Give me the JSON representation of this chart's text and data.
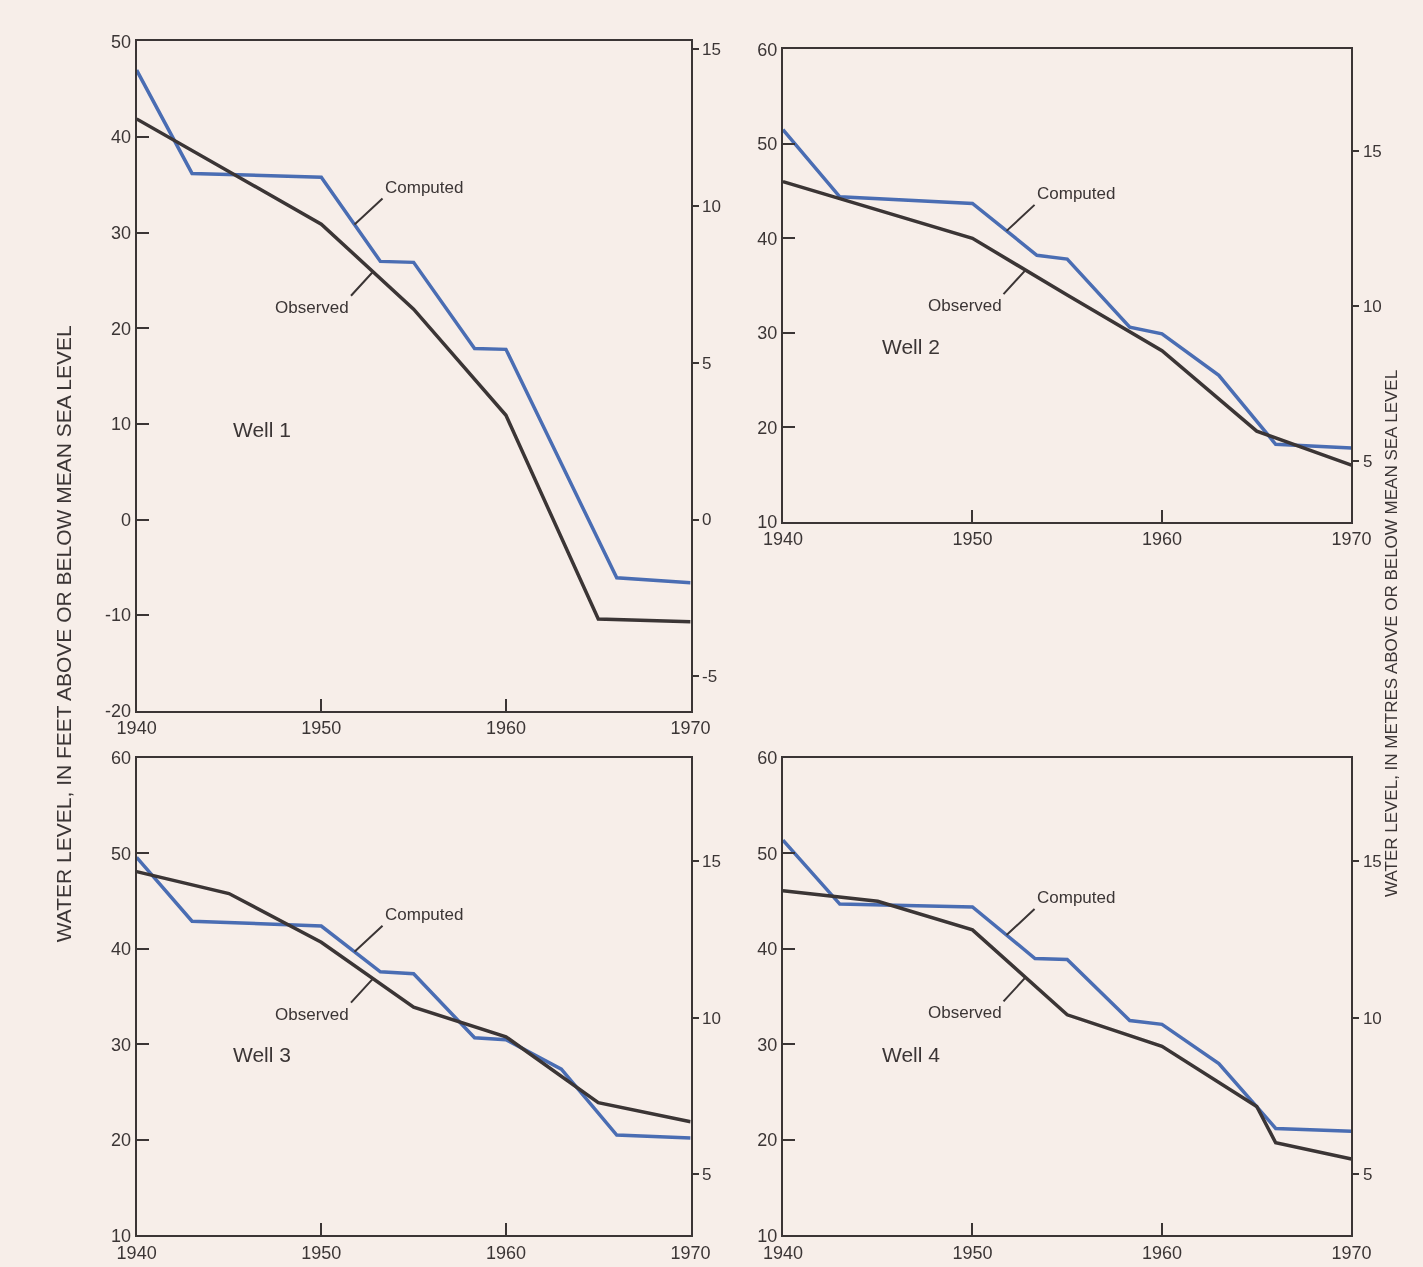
{
  "chart_data": [
    {
      "type": "line",
      "ylabel": "WATER LEVEL, IN FEET ABOVE OR BELOW MEAN SEA LEVEL",
      "annotations": [
        "Well 1"
      ],
      "xlim": [
        1940,
        1970
      ],
      "xticks": [
        1940,
        1950,
        1960,
        1970
      ],
      "ylim": [
        -20,
        50
      ],
      "yticks": [
        -20,
        -10,
        0,
        10,
        20,
        30,
        40,
        50
      ],
      "y2lim": [
        -6.096,
        15.24
      ],
      "y2ticks": [
        -5,
        0,
        5,
        10,
        15
      ],
      "grid": false,
      "series": [
        {
          "name": "Computed",
          "color": "#4a6db3",
          "x": [
            1940,
            1943,
            1950,
            1953.2,
            1955,
            1958.3,
            1960,
            1966,
            1970
          ],
          "values": [
            47,
            36.2,
            35.8,
            27.0,
            26.9,
            17.9,
            17.8,
            -6.1,
            -6.6
          ]
        },
        {
          "name": "Observed",
          "color": "#3b3535",
          "x": [
            1940,
            1950,
            1955,
            1960,
            1965,
            1970
          ],
          "values": [
            41.9,
            30.9,
            22.0,
            10.9,
            -10.4,
            -10.7
          ]
        }
      ]
    },
    {
      "type": "line",
      "y2label": "WATER LEVEL, IN METRES ABOVE OR BELOW MEAN SEA LEVEL",
      "annotations": [
        "Well 2"
      ],
      "xlim": [
        1940,
        1970
      ],
      "xticks": [
        1940,
        1950,
        1960,
        1970
      ],
      "ylim": [
        10,
        60
      ],
      "yticks": [
        10,
        20,
        30,
        40,
        50,
        60
      ],
      "y2lim": [
        3.048,
        18.288
      ],
      "y2ticks": [
        5,
        10,
        15
      ],
      "grid": false,
      "series": [
        {
          "name": "Computed",
          "color": "#4a6db3",
          "x": [
            1940,
            1943,
            1950,
            1953.4,
            1955,
            1958.3,
            1960,
            1963,
            1966,
            1970
          ],
          "values": [
            51.5,
            44.4,
            43.7,
            38.2,
            37.8,
            30.6,
            29.9,
            25.5,
            18.2,
            17.8
          ]
        },
        {
          "name": "Observed",
          "color": "#3b3535",
          "x": [
            1940,
            1943,
            1950,
            1955,
            1960,
            1965,
            1970
          ],
          "values": [
            46,
            44.2,
            40,
            34,
            28.1,
            19.6,
            16.0
          ]
        }
      ]
    },
    {
      "type": "line",
      "annotations": [
        "Well 3"
      ],
      "xlim": [
        1940,
        1970
      ],
      "xticks": [
        1940,
        1950,
        1960,
        1970
      ],
      "ylim": [
        10,
        60
      ],
      "yticks": [
        10,
        20,
        30,
        40,
        50,
        60
      ],
      "y2lim": [
        3.048,
        18.288
      ],
      "y2ticks": [
        5,
        10,
        15
      ],
      "grid": false,
      "series": [
        {
          "name": "Computed",
          "color": "#4a6db3",
          "x": [
            1940,
            1943,
            1950,
            1953.2,
            1955,
            1958.3,
            1960,
            1963,
            1966,
            1970
          ],
          "values": [
            49.6,
            42.9,
            42.4,
            37.6,
            37.4,
            30.7,
            30.5,
            27.4,
            20.5,
            20.2
          ]
        },
        {
          "name": "Observed",
          "color": "#3b3535",
          "x": [
            1940,
            1945,
            1950,
            1955,
            1960,
            1965,
            1970
          ],
          "values": [
            48.1,
            45.8,
            40.7,
            33.9,
            30.8,
            23.9,
            21.9
          ]
        }
      ]
    },
    {
      "type": "line",
      "annotations": [
        "Well 4"
      ],
      "xlim": [
        1940,
        1970
      ],
      "xticks": [
        1940,
        1950,
        1960,
        1970
      ],
      "ylim": [
        10,
        60
      ],
      "yticks": [
        10,
        20,
        30,
        40,
        50,
        60
      ],
      "y2lim": [
        3.048,
        18.288
      ],
      "y2ticks": [
        5,
        10,
        15
      ],
      "grid": false,
      "series": [
        {
          "name": "Computed",
          "color": "#4a6db3",
          "x": [
            1940,
            1943,
            1950,
            1953.3,
            1955,
            1958.3,
            1960,
            1963,
            1966,
            1970
          ],
          "values": [
            51.4,
            44.7,
            44.4,
            39.0,
            38.9,
            32.5,
            32.1,
            28.0,
            21.2,
            20.9
          ]
        },
        {
          "name": "Observed",
          "color": "#3b3535",
          "x": [
            1940,
            1945,
            1950,
            1955,
            1960,
            1965,
            1966,
            1970
          ],
          "values": [
            46.1,
            45.0,
            42.0,
            33.1,
            29.8,
            23.5,
            19.7,
            18.0
          ]
        }
      ]
    }
  ]
}
